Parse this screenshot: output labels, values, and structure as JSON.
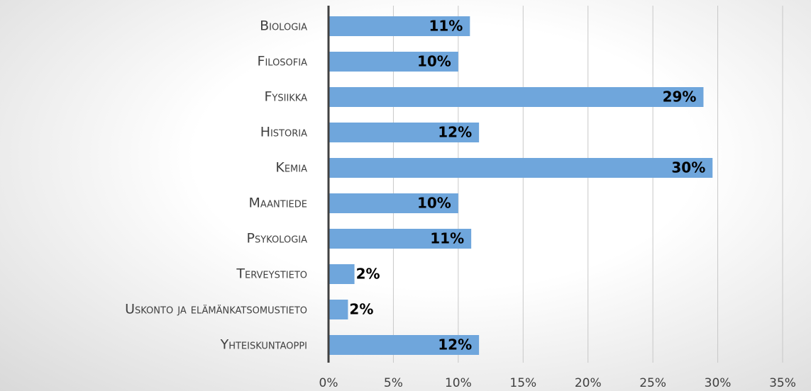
{
  "chart_data": {
    "type": "bar",
    "orientation": "horizontal",
    "categories": [
      "Biologia",
      "Filosofia",
      "Fysiikka",
      "Historia",
      "Kemia",
      "Maantiede",
      "Psykologia",
      "Terveystieto",
      "Uskonto ja elämänkatsomustieto",
      "Yhteiskuntaoppi"
    ],
    "values": [
      10.9,
      10.0,
      28.9,
      11.6,
      29.6,
      10.0,
      11.0,
      2.0,
      1.5,
      11.6
    ],
    "value_labels": [
      "11%",
      "10%",
      "29%",
      "12%",
      "30%",
      "10%",
      "11%",
      "2%",
      "2%",
      "12%"
    ],
    "color": "#6fa6dc",
    "xlim": [
      0,
      35
    ],
    "xticks": [
      {
        "value": 0,
        "label": "0%"
      },
      {
        "value": 5,
        "label": "5%"
      },
      {
        "value": 10,
        "label": "10%"
      },
      {
        "value": 15,
        "label": "15%"
      },
      {
        "value": 20,
        "label": "20%"
      },
      {
        "value": 25,
        "label": "25%"
      },
      {
        "value": 30,
        "label": "30%"
      },
      {
        "value": 35,
        "label": "35%"
      }
    ],
    "grid": true
  }
}
